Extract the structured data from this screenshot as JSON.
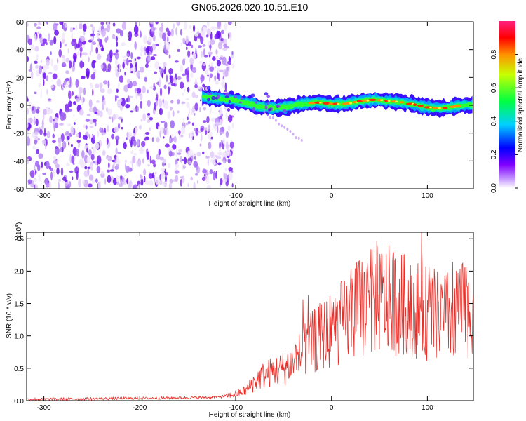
{
  "title": "GN05.2026.020.10.51.E10",
  "chart_data": [
    {
      "type": "heatmap",
      "title": "GN05.2026.020.10.51.E10",
      "xlabel": "Height of straight line (km)",
      "ylabel": "Frequency (Hz)",
      "xlim": [
        -318,
        148
      ],
      "ylim": [
        -60,
        60
      ],
      "xticks": [
        "-300",
        "-200",
        "-100",
        "0",
        "100"
      ],
      "xtick_values": [
        -300,
        -200,
        -100,
        0,
        100
      ],
      "yticks": [
        "-60",
        "-40",
        "-20",
        "0",
        "20",
        "40",
        "60"
      ],
      "ytick_values": [
        -60,
        -40,
        -20,
        0,
        20,
        40,
        60
      ],
      "noise_region_x": [
        -318,
        -110
      ],
      "signal_ridge": {
        "x": [
          -135,
          -120,
          -105,
          -90,
          -75,
          -60,
          -45,
          -30,
          -15,
          0,
          15,
          30,
          45,
          60,
          75,
          90,
          105,
          120,
          135,
          148
        ],
        "freq": [
          6,
          5,
          4,
          2,
          -1,
          -2,
          -1,
          1,
          2,
          1,
          1,
          3,
          4,
          3,
          2,
          0,
          -2,
          -2,
          0,
          0
        ]
      },
      "colorbar": {
        "label": "Normalized spectral amplitude",
        "range": [
          0,
          1
        ],
        "ticks": [
          "0.0",
          "0.2",
          "0.4",
          "0.6",
          "0.8"
        ],
        "tick_values": [
          0,
          0.2,
          0.4,
          0.6,
          0.8
        ],
        "colormap": [
          "#e8d8f8",
          "#8000ff",
          "#0000ff",
          "#00ffff",
          "#00ff00",
          "#ffff00",
          "#ff8000",
          "#ff0000"
        ]
      }
    },
    {
      "type": "line",
      "xlabel": "Height of straight line (km)",
      "ylabel": "SNR (10 * v/v)",
      "y_multiplier_label": "(x10",
      "y_multiplier_exp": "4",
      "y_multiplier_close": ")",
      "xlim": [
        -318,
        148
      ],
      "ylim": [
        0,
        2.6
      ],
      "xticks": [
        "-300",
        "-200",
        "-100",
        "0",
        "100"
      ],
      "xtick_values": [
        -300,
        -200,
        -100,
        0,
        100
      ],
      "yticks": [
        "0.0",
        "0.5",
        "1.0",
        "1.5",
        "2.0",
        "2.5"
      ],
      "ytick_values": [
        0,
        0.5,
        1.0,
        1.5,
        2.0,
        2.5
      ],
      "color": "#e8302a",
      "series": [
        {
          "x": [
            -318,
            -250,
            -180,
            -130,
            -115,
            -100,
            -90,
            -80,
            -70,
            -60,
            -50,
            -40,
            -30,
            -20,
            -10,
            0,
            10,
            20,
            30,
            40,
            50,
            60,
            70,
            80,
            90,
            100,
            110,
            120,
            130,
            140,
            148
          ],
          "y": [
            0.02,
            0.03,
            0.04,
            0.05,
            0.06,
            0.1,
            0.15,
            0.3,
            0.4,
            0.45,
            0.5,
            0.6,
            0.75,
            0.9,
            1.0,
            1.1,
            1.2,
            1.3,
            1.45,
            1.5,
            1.55,
            1.55,
            1.5,
            1.45,
            1.4,
            1.35,
            1.3,
            1.3,
            1.35,
            1.4,
            1.4
          ]
        }
      ]
    }
  ]
}
